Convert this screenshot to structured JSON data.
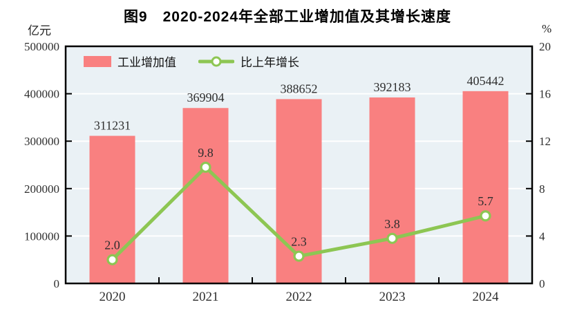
{
  "chart": {
    "title": "图9　2020-2024年全部工业增加值及其增长速度",
    "left_unit": "亿元",
    "right_unit": "%"
  },
  "legend": {
    "bar_label": "工业增加值",
    "line_label": "比上年增长"
  },
  "colors": {
    "bar": "#F98080",
    "line": "#8DC653",
    "plot_bg": "#EAF1F5",
    "grid": "#FFFFFF",
    "axis": "#000000",
    "label": "#2E2E2E"
  },
  "chart_data": {
    "type": "bar",
    "subtype": "bar+line combo",
    "title": "图9　2020-2024年全部工业增加值及其增长速度",
    "categories": [
      "2020",
      "2021",
      "2022",
      "2023",
      "2024"
    ],
    "series": [
      {
        "name": "工业增加值",
        "type": "bar",
        "axis": "left",
        "values": [
          311231,
          369904,
          388652,
          392183,
          405442
        ]
      },
      {
        "name": "比上年增长",
        "type": "line",
        "axis": "right",
        "values": [
          2.0,
          9.8,
          2.3,
          3.8,
          5.7
        ]
      }
    ],
    "left_axis": {
      "label": "亿元",
      "min": 0,
      "max": 500000,
      "step": 100000,
      "ticks": [
        "0",
        "100000",
        "200000",
        "300000",
        "400000",
        "500000"
      ]
    },
    "right_axis": {
      "label": "%",
      "min": 0,
      "max": 20,
      "step": 4,
      "ticks": [
        "0",
        "4",
        "8",
        "12",
        "16",
        "20"
      ]
    },
    "grid": true,
    "legend_position": "top-left inside plot"
  }
}
